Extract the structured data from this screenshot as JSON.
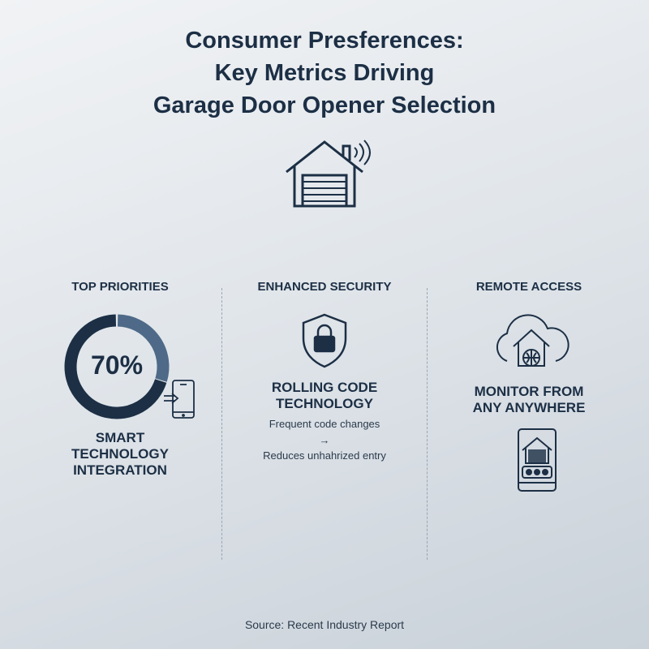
{
  "title": [
    "Consumer Presferences:",
    "Key Metrics Driving",
    "Garage Door Opener Selection"
  ],
  "header_icon": "garage-wifi-icon",
  "columns": [
    {
      "heading": "TOP PRIORITIES",
      "percent_label": "70%",
      "percent_value": 70,
      "label_lines": [
        "SMART",
        "TECHNOLOGY",
        "INTEGRATION"
      ],
      "icon": "smartphone-arrow-icon"
    },
    {
      "heading": "ENHANCED SECURITY",
      "icon": "shield-lock-icon",
      "label_lines": [
        "ROLLING CODE",
        "TECHNOLOGY"
      ],
      "line1": "Frequent code changes",
      "arrow": "→",
      "line2": "Reduces unhahrized entry"
    },
    {
      "heading": "REMOTE ACCESS",
      "icon": "cloud-home-globe-icon",
      "label_lines": [
        "MONITOR FROM",
        "ANY ANYWHERE"
      ],
      "bottom_icon": "smartphone-garage-icon"
    }
  ],
  "colors": {
    "dark": "#1c2f45",
    "donut_light": "#4e6a88"
  },
  "source": "Source: Recent Industry Report"
}
